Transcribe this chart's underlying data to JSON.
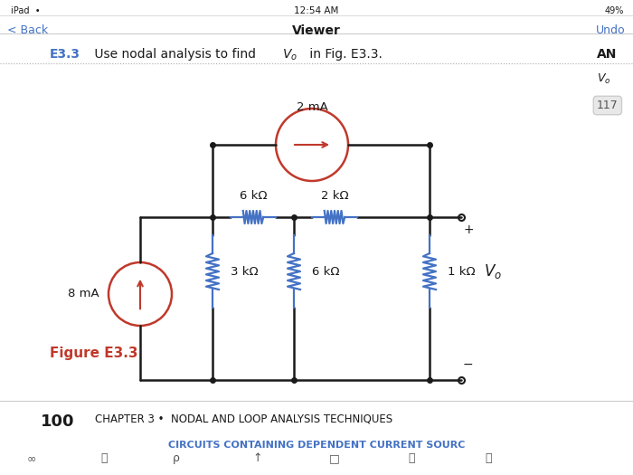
{
  "bg_color": "#ffffff",
  "title_text": "E3.3",
  "title_color": "#4472C4",
  "problem_text": " Use nodal analysis to find ",
  "Vo_subscript": "o",
  "problem_suffix": " in Fig. E3.3.",
  "figure_label": "Figure E3.3",
  "figure_label_color": "#C0392B",
  "bottom_number": "100",
  "bottom_chapter": "CHAPTER 3 •  NODAL AND LOOP ANALYSIS TECHNIQUES",
  "bottom_section": "CIRCUITS CONTAINING DEPENDENT CURRENT SOURC",
  "bottom_section_color": "#4472C4",
  "header_left": "< Back",
  "header_center": "Viewer",
  "header_right": "Undo",
  "status_bar": "iPad  12:54 AM  49%",
  "wire_color": "#1a1a1a",
  "resistor_color": "#4472C4",
  "source_8mA_color": "#C0392B",
  "source_2mA_color": "#C0392B",
  "label_8mA": "8 mA",
  "label_2mA": "2 mA",
  "label_6k1": "6 kΩ",
  "label_2k": "2 kΩ",
  "label_3k": "3 kΩ",
  "label_6k2": "6 kΩ",
  "label_1k": "1 kΩ",
  "label_Vo": "V_o"
}
